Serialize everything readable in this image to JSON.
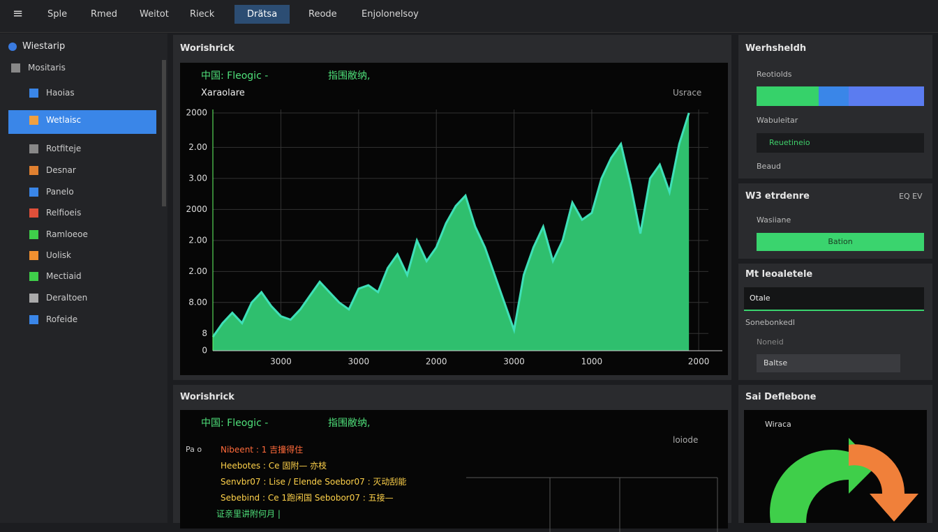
{
  "menu": [
    "Sple",
    "Rmed",
    "Weitot",
    "Rieck",
    "Drätsa",
    "Reode",
    "Enjolonelsoy"
  ],
  "sidebar": {
    "title": "Wiestarip",
    "items": [
      "Mositaris",
      "Haoias",
      "Wetlaisc",
      "Rotfiteje",
      "Desnar",
      "Panelo",
      "Relfioeis",
      "Ramloeoe",
      "Uolisk",
      "Mectiaid",
      "Deraltoen",
      "Rofeide"
    ]
  },
  "panel1": {
    "title": "Worishrick",
    "header": "中国: Fleogic -",
    "header2": "指围敝纳,",
    "subtitle": "Xaraolare",
    "corner": "Usrace",
    "chart_data": {
      "type": "area",
      "color": "#2fbf6e",
      "line_color": "#3fe0b8",
      "x": [
        0,
        1,
        2,
        3,
        4,
        5,
        6,
        7,
        8,
        9,
        10,
        11,
        12,
        13,
        14,
        15,
        16,
        17,
        18,
        19,
        20,
        21,
        22,
        23,
        24,
        25,
        26,
        27,
        28,
        29,
        30,
        31,
        32,
        33,
        34,
        35,
        36,
        37,
        38,
        39,
        40,
        41,
        42,
        43,
        44,
        45,
        46,
        47,
        48,
        49
      ],
      "values": [
        20,
        40,
        55,
        40,
        70,
        85,
        65,
        50,
        45,
        60,
        80,
        100,
        85,
        70,
        60,
        90,
        95,
        85,
        120,
        140,
        110,
        160,
        130,
        150,
        185,
        210,
        225,
        180,
        150,
        110,
        70,
        30,
        110,
        150,
        180,
        130,
        160,
        215,
        190,
        200,
        250,
        280,
        300,
        240,
        170,
        250,
        270,
        230,
        300,
        345
      ],
      "xlim": [
        0,
        51
      ],
      "xticks": [
        {
          "value": 7,
          "label": "3000"
        },
        {
          "value": 15,
          "label": "3000"
        },
        {
          "value": 23,
          "label": "2000"
        },
        {
          "value": 31,
          "label": "3000"
        },
        {
          "value": 39,
          "label": "1000"
        },
        {
          "value": 50,
          "label": "2000"
        }
      ],
      "ylim": [
        0,
        350
      ],
      "yticks": [
        0,
        {
          "value": 25,
          "label": "8"
        },
        {
          "value": 70,
          "label": "8.00"
        },
        {
          "value": 115,
          "label": "2.00"
        },
        {
          "value": 160,
          "label": "2.00"
        },
        {
          "value": 205,
          "label": "2000"
        },
        {
          "value": 250,
          "label": "3.00"
        },
        {
          "value": 295,
          "label": "2.00"
        },
        {
          "value": 345,
          "label": "2000"
        }
      ],
      "grid": true
    }
  },
  "panel2": {
    "title": "Worishrick",
    "header": "中国: Fleogic -",
    "header2": "指围敝纳,",
    "corner": "loiode",
    "prefix": "Pa o",
    "lines": [
      "Nibeent : 1 吉撞得住",
      "Heebotes : Ce 固附—  亦枝",
      "Senvbr07 : Lise / Elende Soebor07 : 灭动刮能",
      "Sebebind : Ce 1跑闲国 Sebobor07 : 五接—",
      "证亲里讲附何月 |"
    ]
  },
  "right": {
    "title": "Werhsheldh",
    "section1": "Reotiolds",
    "label1": "Wabuleitar",
    "field1": "Reuetineio",
    "label2": "Beaud",
    "title2": "W3 etrdenre",
    "title2_right": "EQ EV",
    "section2": "Wasiiane",
    "button": "Bation",
    "title3": "Mt leoaletele",
    "select": "Otale",
    "label3": "Sonebonkedl",
    "label4": "Noneid",
    "input": "Baltse",
    "title4": "Sai Deflebone",
    "card": "Wiraca"
  }
}
